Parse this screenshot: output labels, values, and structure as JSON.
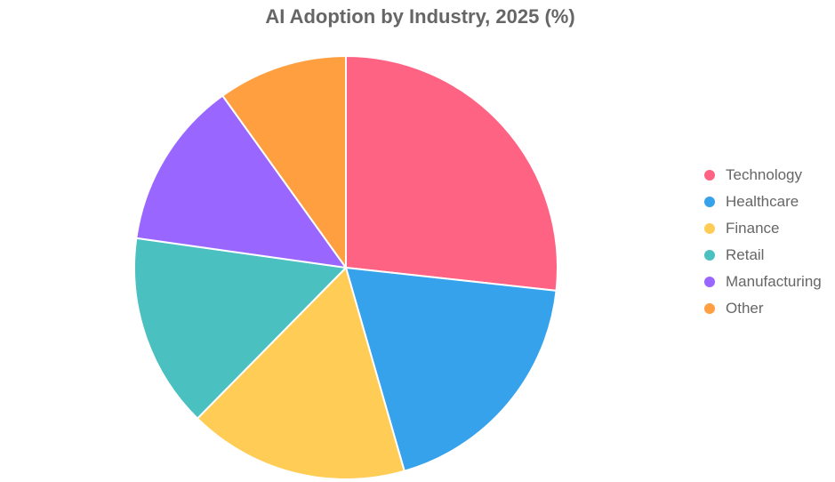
{
  "chart_data": {
    "type": "pie",
    "title": "AI Adoption by Industry, 2025 (%)",
    "categories": [
      "Technology",
      "Healthcare",
      "Finance",
      "Retail",
      "Manufacturing",
      "Other"
    ],
    "values": [
      27,
      19,
      17,
      15,
      13,
      10
    ],
    "colors": [
      "#ff6384",
      "#36a2eb",
      "#ffcd56",
      "#4bc0c0",
      "#9966ff",
      "#ff9f40"
    ],
    "legend_position": "right"
  }
}
